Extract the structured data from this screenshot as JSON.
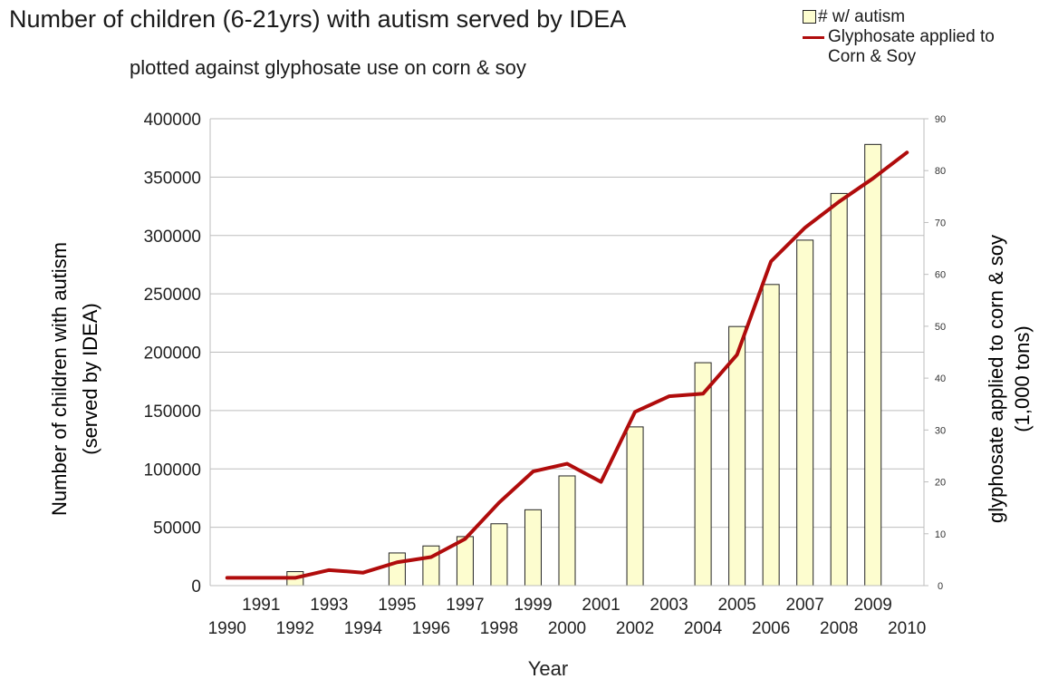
{
  "chart_data": {
    "type": "bar",
    "title": "Number of children (6-21yrs) with autism served by IDEA",
    "subtitle": "plotted against glyphosate use on corn & soy",
    "xlabel": "Year",
    "ylabel_left_line1": "Number of children with autism",
    "ylabel_left_line2": "(served by IDEA)",
    "ylabel_right_line1": "glyphosate applied to corn & soy",
    "ylabel_right_line2": "(1,000 tons)",
    "categories": [
      "1990",
      "1991",
      "1992",
      "1993",
      "1994",
      "1995",
      "1996",
      "1997",
      "1998",
      "1999",
      "2000",
      "2001",
      "2002",
      "2003",
      "2004",
      "2005",
      "2006",
      "2007",
      "2008",
      "2009",
      "2010"
    ],
    "ylim_left": [
      0,
      400000
    ],
    "yticks_left": [
      "400000",
      "350000",
      "300000",
      "250000",
      "200000",
      "150000",
      "100000",
      "50000",
      "0"
    ],
    "ylim_right": [
      0,
      90
    ],
    "yticks_right": [
      "90",
      "80",
      "70",
      "60",
      "50",
      "40",
      "30",
      "20",
      "10",
      "0"
    ],
    "legend_position": "top-right",
    "grid": true,
    "series": [
      {
        "name": "# w/ autism",
        "kind": "bar",
        "axis": "left",
        "color": "#fdfdcf",
        "values": [
          null,
          null,
          12000,
          null,
          null,
          28000,
          34000,
          42000,
          53000,
          65000,
          94000,
          null,
          136000,
          null,
          191000,
          222000,
          258000,
          296000,
          336000,
          378000,
          null
        ]
      },
      {
        "name": "Glyphosate applied to Corn & Soy",
        "legend_line1": "Glyphosate applied to",
        "legend_line2": "Corn & Soy",
        "kind": "line",
        "axis": "right",
        "color": "#b00c0c",
        "values": [
          1.5,
          1.5,
          1.5,
          3,
          2.5,
          4.5,
          5.5,
          9,
          16,
          22,
          23.5,
          20,
          33.5,
          36.5,
          37,
          44.5,
          62.5,
          69,
          74,
          78.5,
          83.5
        ]
      }
    ]
  }
}
